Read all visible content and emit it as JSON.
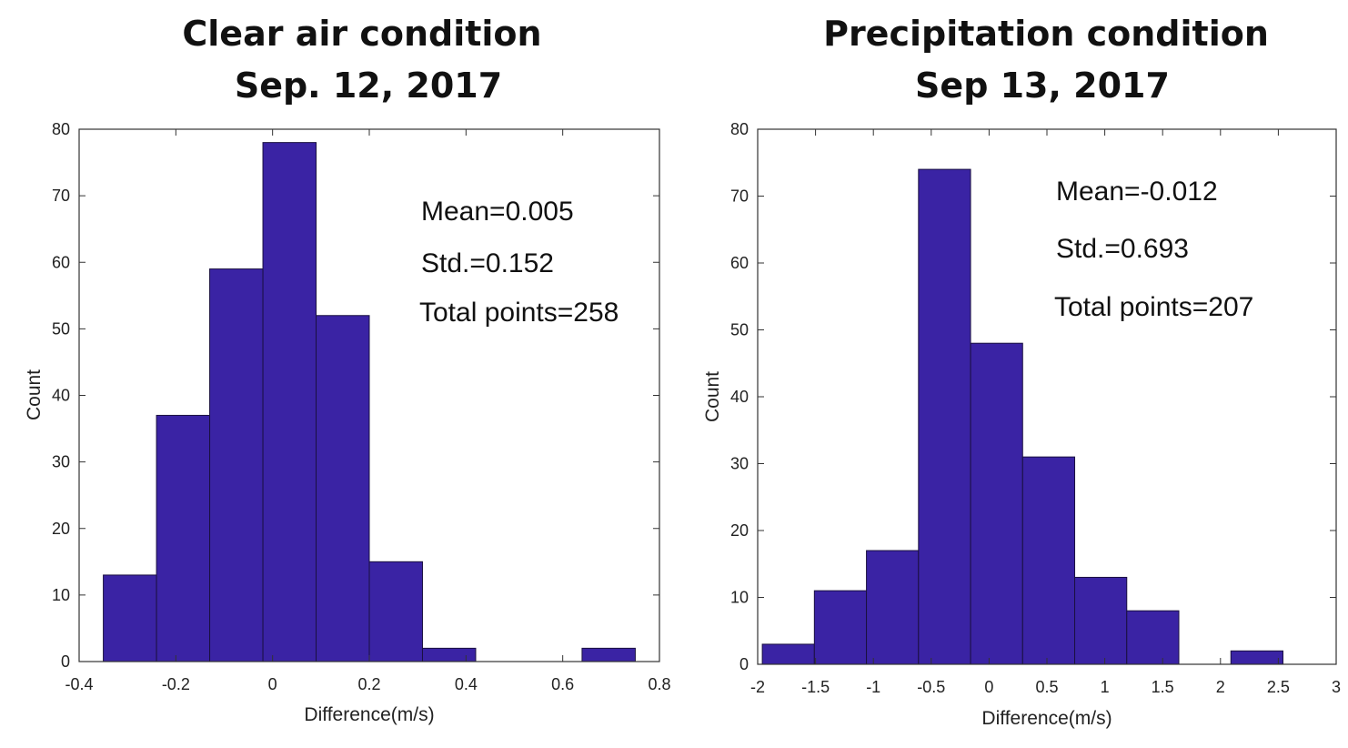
{
  "chart_data": [
    {
      "type": "bar",
      "title": [
        "Clear air condition",
        "Sep. 12, 2017"
      ],
      "xlabel": "Difference(m/s)",
      "ylabel": "Count",
      "xlim": [
        -0.4,
        0.8
      ],
      "ylim": [
        0,
        80
      ],
      "xticks": [
        -0.4,
        -0.2,
        0,
        0.2,
        0.4,
        0.6,
        0.8
      ],
      "xtick_labels": [
        "-0.4",
        "-0.2",
        "0",
        "0.2",
        "0.4",
        "0.6",
        "0.8"
      ],
      "yticks": [
        0,
        10,
        20,
        30,
        40,
        50,
        60,
        70,
        80
      ],
      "ytick_labels": [
        "0",
        "10",
        "20",
        "30",
        "40",
        "50",
        "60",
        "70",
        "80"
      ],
      "bin_edges": [
        -0.35,
        -0.24,
        -0.13,
        -0.02,
        0.09,
        0.2,
        0.31,
        0.42,
        0.53,
        0.64,
        0.75
      ],
      "values": [
        13,
        37,
        59,
        78,
        52,
        15,
        2,
        0,
        0,
        2
      ],
      "annotations": [
        "Mean=0.005",
        "Std.=0.152",
        "Total points=258"
      ],
      "bar_color": "#3a23a4"
    },
    {
      "type": "bar",
      "title": [
        "Precipitation condition",
        "Sep 13, 2017"
      ],
      "xlabel": "Difference(m/s)",
      "ylabel": "Count",
      "xlim": [
        -2,
        3
      ],
      "ylim": [
        0,
        80
      ],
      "xticks": [
        -2,
        -1.5,
        -1,
        -0.5,
        0,
        0.5,
        1,
        1.5,
        2,
        2.5,
        3
      ],
      "xtick_labels": [
        "-2",
        "-1.5",
        "-1",
        "-0.5",
        "0",
        "0.5",
        "1",
        "1.5",
        "2",
        "2.5",
        "3"
      ],
      "yticks": [
        0,
        10,
        20,
        30,
        40,
        50,
        60,
        70,
        80
      ],
      "ytick_labels": [
        "0",
        "10",
        "20",
        "30",
        "40",
        "50",
        "60",
        "70",
        "80"
      ],
      "bin_edges": [
        -1.96,
        -1.51,
        -1.06,
        -0.61,
        -0.16,
        0.29,
        0.74,
        1.19,
        1.64,
        2.09,
        2.54
      ],
      "values": [
        3,
        11,
        17,
        74,
        48,
        31,
        13,
        8,
        0,
        2
      ],
      "annotations": [
        "Mean=-0.012",
        "Std.=0.693",
        "Total points=207"
      ],
      "bar_color": "#3a23a4"
    }
  ]
}
